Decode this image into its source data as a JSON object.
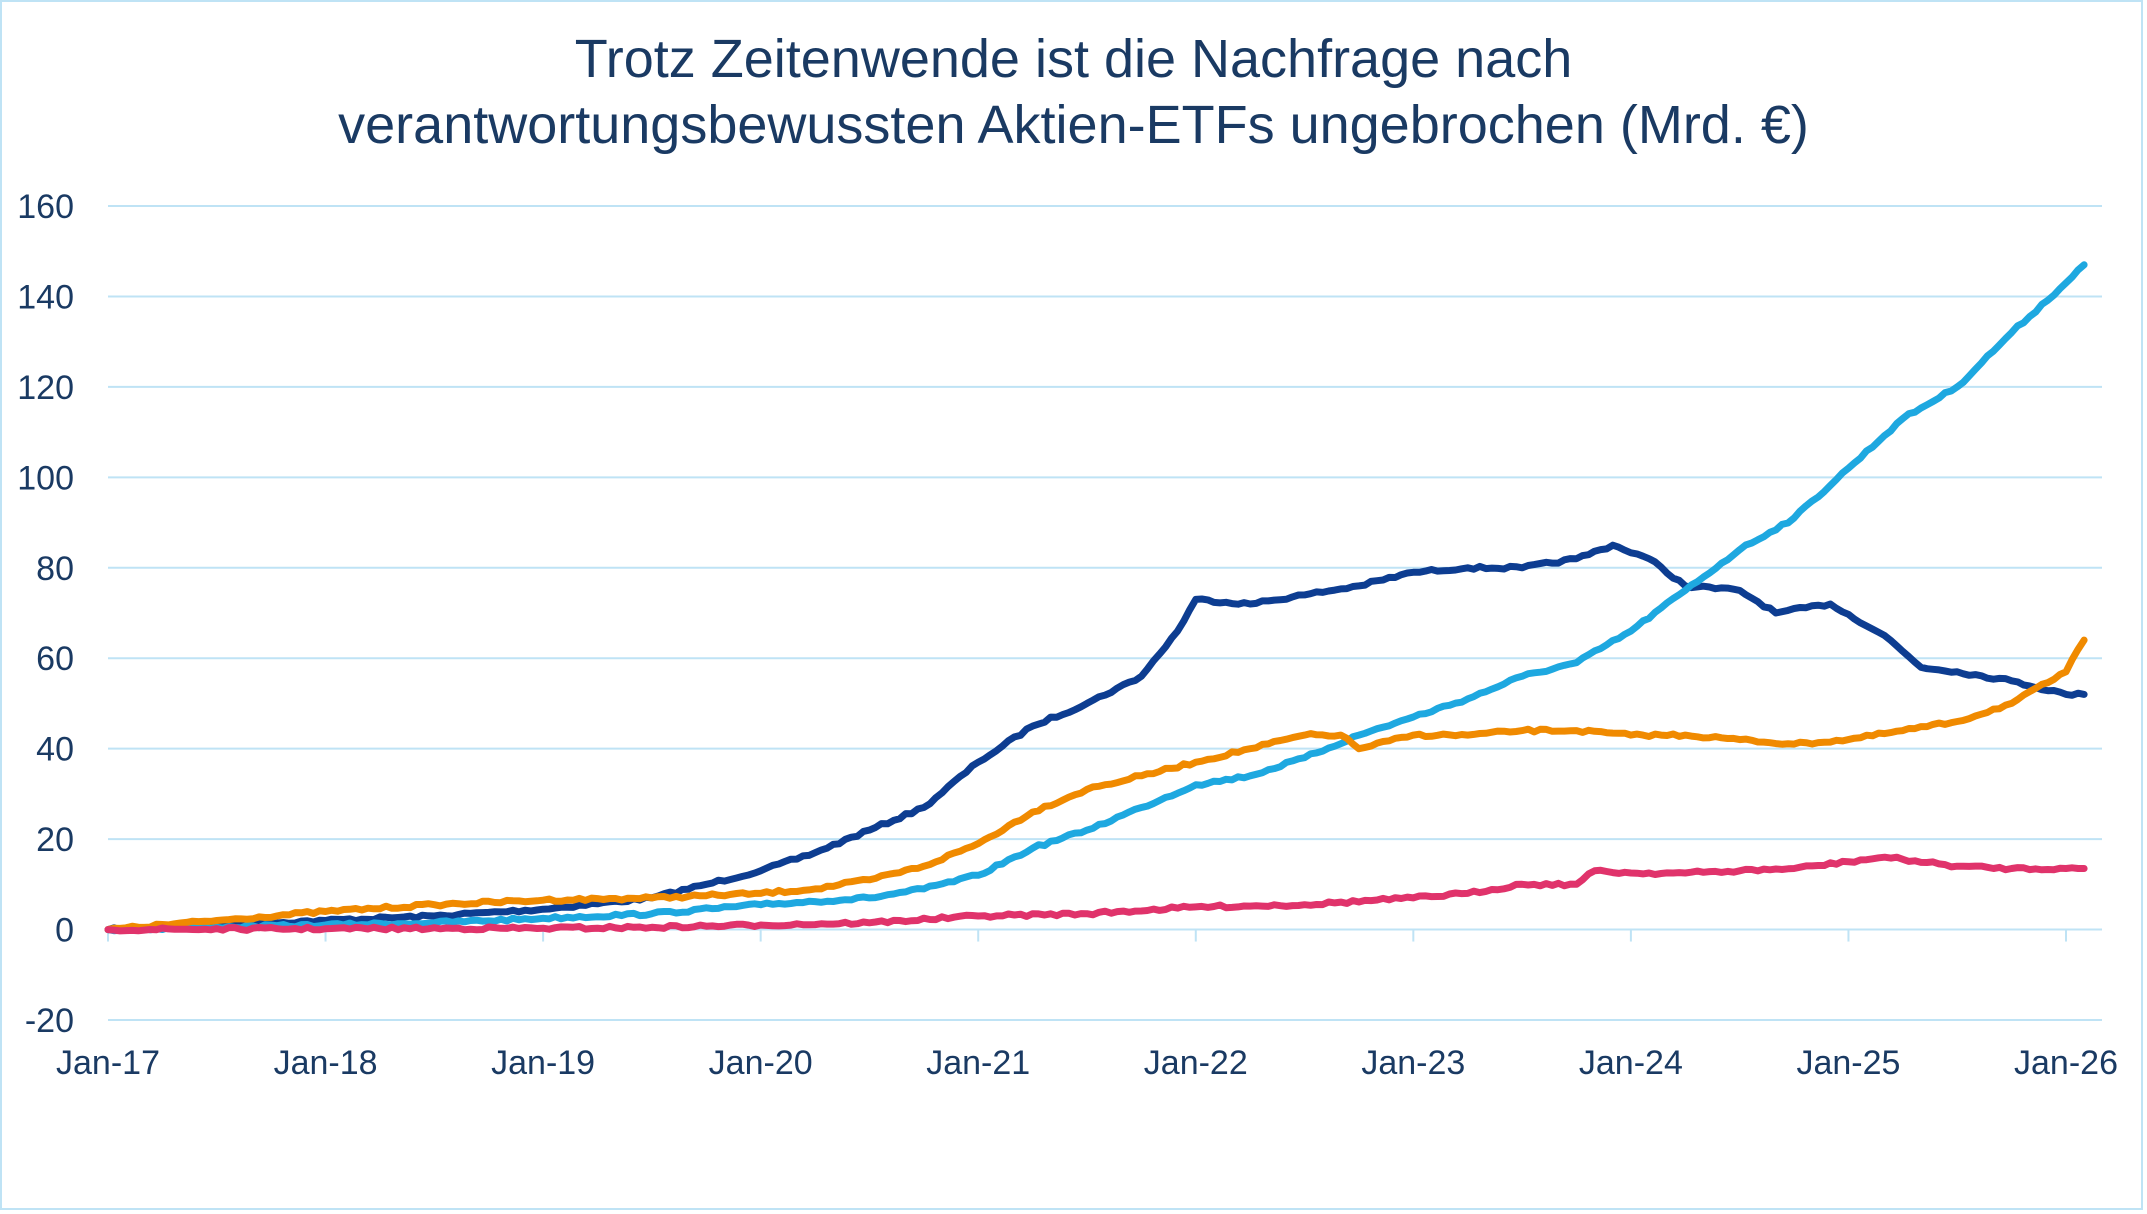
{
  "chart_data": {
    "type": "line",
    "title_line1": "Trotz Zeitenwende ist die Nachfrage nach",
    "title_line2": "verantwortungsbewussten Aktien-ETFs ungebrochen (Mrd. €)",
    "xlabel": "",
    "ylabel": "",
    "ylim": [
      -20,
      160
    ],
    "yticks": [
      -20,
      0,
      20,
      40,
      60,
      80,
      100,
      120,
      140,
      160
    ],
    "xticks": [
      "Jan-17",
      "Jan-18",
      "Jan-19",
      "Jan-20",
      "Jan-21",
      "Jan-22",
      "Jan-23",
      "Jan-24",
      "Jan-25",
      "Jan-26"
    ],
    "xrange": [
      "2017-01",
      "2026-02"
    ],
    "grid": true,
    "legend": "none",
    "series": [
      {
        "color": "#0d3d91",
        "points": [
          [
            "2017-01",
            0
          ],
          [
            "2017-07",
            1
          ],
          [
            "2018-01",
            2
          ],
          [
            "2018-07",
            3
          ],
          [
            "2019-01",
            4.5
          ],
          [
            "2019-07",
            7
          ],
          [
            "2019-10",
            10
          ],
          [
            "2020-01",
            13
          ],
          [
            "2020-04",
            17
          ],
          [
            "2020-07",
            22
          ],
          [
            "2020-10",
            27
          ],
          [
            "2021-01",
            37
          ],
          [
            "2021-04",
            45
          ],
          [
            "2021-07",
            50
          ],
          [
            "2021-10",
            56
          ],
          [
            "2021-12",
            66
          ],
          [
            "2022-01",
            73
          ],
          [
            "2022-04",
            72
          ],
          [
            "2022-07",
            74
          ],
          [
            "2022-10",
            76
          ],
          [
            "2023-01",
            79
          ],
          [
            "2023-04",
            80
          ],
          [
            "2023-07",
            80
          ],
          [
            "2023-10",
            82
          ],
          [
            "2023-12",
            85
          ],
          [
            "2024-02",
            82
          ],
          [
            "2024-04",
            76
          ],
          [
            "2024-07",
            75
          ],
          [
            "2024-09",
            70
          ],
          [
            "2024-12",
            72
          ],
          [
            "2025-03",
            65
          ],
          [
            "2025-05",
            58
          ],
          [
            "2025-07",
            57
          ],
          [
            "2025-10",
            55
          ],
          [
            "2026-01",
            52
          ],
          [
            "2026-02",
            52
          ]
        ]
      },
      {
        "color": "#1ea8e0",
        "points": [
          [
            "2017-01",
            0
          ],
          [
            "2017-07",
            0.5
          ],
          [
            "2018-01",
            1
          ],
          [
            "2018-07",
            1.5
          ],
          [
            "2019-01",
            2.5
          ],
          [
            "2019-07",
            3.5
          ],
          [
            "2020-01",
            5.5
          ],
          [
            "2020-07",
            7
          ],
          [
            "2020-10",
            9
          ],
          [
            "2021-01",
            12
          ],
          [
            "2021-04",
            18
          ],
          [
            "2021-07",
            22
          ],
          [
            "2021-10",
            27
          ],
          [
            "2022-01",
            32
          ],
          [
            "2022-04",
            34
          ],
          [
            "2022-07",
            38
          ],
          [
            "2022-10",
            43
          ],
          [
            "2023-01",
            47
          ],
          [
            "2023-04",
            51
          ],
          [
            "2023-07",
            56
          ],
          [
            "2023-10",
            59
          ],
          [
            "2024-01",
            66
          ],
          [
            "2024-04",
            75
          ],
          [
            "2024-07",
            84
          ],
          [
            "2024-10",
            91
          ],
          [
            "2025-01",
            102
          ],
          [
            "2025-04",
            113
          ],
          [
            "2025-07",
            120
          ],
          [
            "2025-10",
            132
          ],
          [
            "2026-01",
            143
          ],
          [
            "2026-02",
            147
          ]
        ]
      },
      {
        "color": "#f08a00",
        "points": [
          [
            "2017-01",
            0
          ],
          [
            "2017-07",
            2
          ],
          [
            "2018-01",
            4
          ],
          [
            "2018-07",
            5.5
          ],
          [
            "2019-01",
            6.5
          ],
          [
            "2019-07",
            7
          ],
          [
            "2020-01",
            8
          ],
          [
            "2020-04",
            9
          ],
          [
            "2020-07",
            11
          ],
          [
            "2020-10",
            14
          ],
          [
            "2021-01",
            19
          ],
          [
            "2021-04",
            26
          ],
          [
            "2021-07",
            31
          ],
          [
            "2021-10",
            34
          ],
          [
            "2022-01",
            37
          ],
          [
            "2022-04",
            40
          ],
          [
            "2022-07",
            43
          ],
          [
            "2022-09",
            43
          ],
          [
            "2022-10",
            40
          ],
          [
            "2023-01",
            43
          ],
          [
            "2023-04",
            43
          ],
          [
            "2023-07",
            44
          ],
          [
            "2023-10",
            44
          ],
          [
            "2024-01",
            43
          ],
          [
            "2024-04",
            43
          ],
          [
            "2024-07",
            42
          ],
          [
            "2024-10",
            41
          ],
          [
            "2025-01",
            42
          ],
          [
            "2025-04",
            44
          ],
          [
            "2025-07",
            46
          ],
          [
            "2025-10",
            50
          ],
          [
            "2026-01",
            57
          ],
          [
            "2026-02",
            64
          ]
        ]
      },
      {
        "color": "#e0336b",
        "points": [
          [
            "2017-01",
            0
          ],
          [
            "2018-01",
            0.2
          ],
          [
            "2019-01",
            0.3
          ],
          [
            "2019-07",
            0.5
          ],
          [
            "2020-01",
            1
          ],
          [
            "2020-07",
            1.5
          ],
          [
            "2021-01",
            3
          ],
          [
            "2021-07",
            3.5
          ],
          [
            "2022-01",
            5
          ],
          [
            "2022-07",
            5.5
          ],
          [
            "2023-01",
            7
          ],
          [
            "2023-04",
            8
          ],
          [
            "2023-07",
            10
          ],
          [
            "2023-10",
            10
          ],
          [
            "2023-11",
            13
          ],
          [
            "2024-01",
            12.5
          ],
          [
            "2024-04",
            12.5
          ],
          [
            "2024-07",
            13
          ],
          [
            "2024-10",
            13.5
          ],
          [
            "2025-01",
            15
          ],
          [
            "2025-03",
            16
          ],
          [
            "2025-07",
            14
          ],
          [
            "2025-10",
            13.5
          ],
          [
            "2026-01",
            13.5
          ],
          [
            "2026-02",
            13.5
          ]
        ]
      }
    ]
  }
}
